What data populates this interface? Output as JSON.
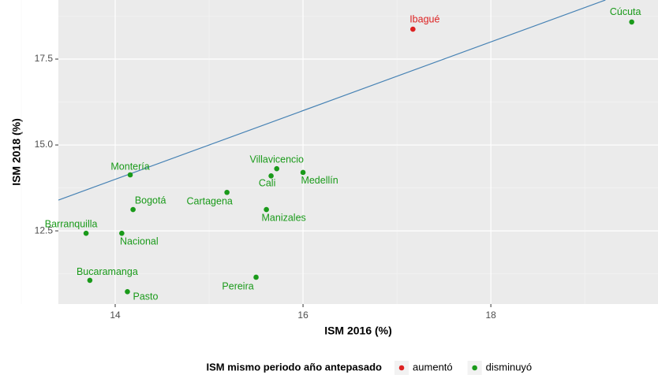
{
  "chart_data": {
    "type": "scatter",
    "xlabel": "ISM 2016 (%)",
    "ylabel": "ISM 2018 (%)",
    "xlim": [
      13.395,
      19.78
    ],
    "ylim": [
      10.37,
      19.22
    ],
    "xticks": [
      14,
      16,
      18
    ],
    "yticks": [
      12.5,
      {
        "value": 15,
        "label": "15.0"
      },
      17.5
    ],
    "x_minor": [
      13,
      15,
      17,
      19
    ],
    "y_minor": [
      11.25,
      13.75,
      16.25,
      18.75
    ],
    "grid": true,
    "reference_line": {
      "slope": 1,
      "intercept": 0,
      "color": "#4682b4"
    },
    "legend_title": "ISM mismo periodo año antepasado",
    "legend_position": "bottom",
    "series": [
      {
        "name": "aumentó",
        "color": "#dd2222",
        "labels": [
          "Ibagué"
        ],
        "x": [
          17.17
        ],
        "values": [
          18.37
        ]
      },
      {
        "name": "disminuyó",
        "color": "#1a9a1a",
        "labels": [
          "Cúcuta",
          "Montería",
          "Villavicencio",
          "Cali",
          "Medellín",
          "Cartagena",
          "Bogotá",
          "Manizales",
          "Barranquilla",
          "Nacional",
          "Bucaramanga",
          "Pereira",
          "Pasto"
        ],
        "x": [
          19.5,
          14.16,
          15.72,
          15.66,
          16.0,
          15.19,
          14.19,
          15.61,
          13.69,
          14.07,
          13.73,
          15.5,
          14.13
        ],
        "values": [
          18.58,
          14.13,
          14.31,
          14.1,
          14.2,
          13.62,
          13.12,
          13.12,
          12.43,
          12.43,
          11.06,
          11.15,
          10.73
        ]
      }
    ]
  }
}
